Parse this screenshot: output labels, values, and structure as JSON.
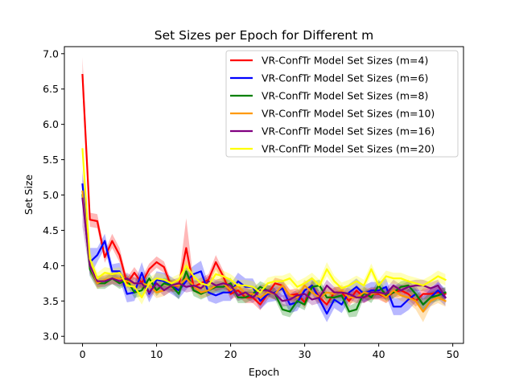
{
  "chart_data": {
    "type": "line",
    "title": "Set Sizes per Epoch for Different m",
    "xlabel": "Epoch",
    "ylabel": "Set Size",
    "xlim": [
      -2.45,
      51.45
    ],
    "ylim": [
      2.9,
      7.1
    ],
    "xticks": [
      0,
      10,
      20,
      30,
      40,
      50
    ],
    "yticks": [
      3.0,
      3.5,
      4.0,
      4.5,
      5.0,
      5.5,
      6.0,
      6.5,
      7.0
    ],
    "xtick_labels": [
      "0",
      "10",
      "20",
      "30",
      "40",
      "50"
    ],
    "ytick_labels": [
      "3.0",
      "3.5",
      "4.0",
      "4.5",
      "5.0",
      "5.5",
      "6.0",
      "6.5",
      "7.0"
    ],
    "grid": false,
    "legend_position": "top-right",
    "shaded_band": "mean ± spread, semi-transparent, same color as line",
    "x": [
      0,
      1,
      2,
      3,
      4,
      5,
      6,
      7,
      8,
      9,
      10,
      11,
      12,
      13,
      14,
      15,
      16,
      17,
      18,
      19,
      20,
      21,
      22,
      23,
      24,
      25,
      26,
      27,
      28,
      29,
      30,
      31,
      32,
      33,
      34,
      35,
      36,
      37,
      38,
      39,
      40,
      41,
      42,
      43,
      44,
      45,
      46,
      47,
      48,
      49
    ],
    "series": [
      {
        "name": "VR-ConfTr Model Set Sizes (m=4)",
        "color": "#ff0000",
        "values": [
          6.7,
          4.65,
          4.63,
          4.12,
          4.35,
          4.15,
          3.75,
          3.9,
          3.75,
          3.95,
          4.05,
          3.98,
          3.7,
          3.72,
          4.25,
          3.7,
          3.75,
          3.8,
          4.05,
          3.85,
          3.6,
          3.65,
          3.55,
          3.55,
          3.45,
          3.6,
          3.75,
          3.72,
          3.58,
          3.6,
          3.48,
          3.72,
          3.55,
          3.45,
          3.62,
          3.62,
          3.5,
          3.65,
          3.55,
          3.6,
          3.6,
          3.55,
          3.62,
          3.65,
          3.6,
          3.5,
          3.6,
          3.6,
          3.62,
          3.6
        ],
        "spread": [
          0.25,
          0.1,
          0.1,
          0.08,
          0.1,
          0.1,
          0.08,
          0.08,
          0.08,
          0.08,
          0.08,
          0.08,
          0.08,
          0.08,
          0.42,
          0.08,
          0.08,
          0.08,
          0.1,
          0.08,
          0.08,
          0.08,
          0.08,
          0.08,
          0.08,
          0.08,
          0.08,
          0.08,
          0.08,
          0.08,
          0.08,
          0.08,
          0.08,
          0.08,
          0.08,
          0.08,
          0.08,
          0.08,
          0.08,
          0.08,
          0.08,
          0.08,
          0.08,
          0.08,
          0.08,
          0.08,
          0.08,
          0.08,
          0.08,
          0.08
        ]
      },
      {
        "name": "VR-ConfTr Model Set Sizes (m=6)",
        "color": "#0000ff",
        "values": [
          5.15,
          4.05,
          4.15,
          4.35,
          3.92,
          3.92,
          3.6,
          3.62,
          3.9,
          3.6,
          3.8,
          3.78,
          3.72,
          3.65,
          3.78,
          3.88,
          3.92,
          3.62,
          3.58,
          3.62,
          3.62,
          3.78,
          3.7,
          3.7,
          3.5,
          3.6,
          3.62,
          3.68,
          3.45,
          3.48,
          3.65,
          3.72,
          3.52,
          3.32,
          3.52,
          3.45,
          3.62,
          3.7,
          3.6,
          3.65,
          3.65,
          3.7,
          3.42,
          3.42,
          3.52,
          3.6,
          3.45,
          3.55,
          3.65,
          3.55
        ],
        "spread": [
          0.15,
          0.2,
          0.1,
          0.1,
          0.1,
          0.12,
          0.12,
          0.12,
          0.15,
          0.12,
          0.12,
          0.12,
          0.12,
          0.12,
          0.12,
          0.12,
          0.15,
          0.12,
          0.12,
          0.12,
          0.12,
          0.12,
          0.12,
          0.12,
          0.12,
          0.12,
          0.12,
          0.12,
          0.12,
          0.12,
          0.12,
          0.12,
          0.12,
          0.12,
          0.12,
          0.12,
          0.12,
          0.12,
          0.12,
          0.12,
          0.12,
          0.12,
          0.12,
          0.12,
          0.15,
          0.12,
          0.12,
          0.12,
          0.12,
          0.12
        ]
      },
      {
        "name": "VR-ConfTr Model Set Sizes (m=8)",
        "color": "#008000",
        "values": [
          5.0,
          3.95,
          3.75,
          3.75,
          3.82,
          3.75,
          3.8,
          3.62,
          3.65,
          3.82,
          3.65,
          3.75,
          3.72,
          3.6,
          3.92,
          3.65,
          3.6,
          3.65,
          3.7,
          3.7,
          3.75,
          3.55,
          3.55,
          3.6,
          3.7,
          3.65,
          3.6,
          3.38,
          3.35,
          3.5,
          3.45,
          3.7,
          3.72,
          3.55,
          3.55,
          3.58,
          3.35,
          3.38,
          3.62,
          3.55,
          3.72,
          3.58,
          3.62,
          3.7,
          3.72,
          3.6,
          3.45,
          3.55,
          3.58,
          3.62
        ],
        "spread": [
          0.1,
          0.1,
          0.08,
          0.08,
          0.08,
          0.08,
          0.08,
          0.08,
          0.08,
          0.08,
          0.08,
          0.08,
          0.08,
          0.08,
          0.08,
          0.08,
          0.08,
          0.08,
          0.08,
          0.08,
          0.08,
          0.08,
          0.08,
          0.08,
          0.08,
          0.08,
          0.08,
          0.08,
          0.08,
          0.08,
          0.08,
          0.08,
          0.08,
          0.08,
          0.08,
          0.08,
          0.08,
          0.1,
          0.08,
          0.08,
          0.08,
          0.08,
          0.08,
          0.08,
          0.08,
          0.08,
          0.08,
          0.08,
          0.08,
          0.08
        ]
      },
      {
        "name": "VR-ConfTr Model Set Sizes (m=10)",
        "color": "#ff9900",
        "values": [
          5.05,
          4.0,
          3.75,
          3.8,
          3.82,
          3.82,
          3.78,
          3.75,
          3.75,
          3.72,
          3.62,
          3.65,
          3.72,
          3.72,
          3.82,
          3.72,
          3.62,
          3.65,
          3.72,
          3.75,
          3.65,
          3.72,
          3.6,
          3.6,
          3.55,
          3.62,
          3.6,
          3.72,
          3.58,
          3.55,
          3.72,
          3.62,
          3.55,
          3.62,
          3.6,
          3.65,
          3.55,
          3.55,
          3.62,
          3.6,
          3.62,
          3.55,
          3.65,
          3.58,
          3.55,
          3.5,
          3.35,
          3.5,
          3.55,
          3.5
        ],
        "spread": [
          0.1,
          0.1,
          0.08,
          0.08,
          0.08,
          0.08,
          0.08,
          0.08,
          0.08,
          0.08,
          0.08,
          0.08,
          0.08,
          0.08,
          0.08,
          0.08,
          0.08,
          0.08,
          0.08,
          0.08,
          0.08,
          0.08,
          0.08,
          0.08,
          0.08,
          0.08,
          0.08,
          0.08,
          0.08,
          0.08,
          0.08,
          0.08,
          0.08,
          0.08,
          0.08,
          0.08,
          0.08,
          0.08,
          0.08,
          0.08,
          0.08,
          0.08,
          0.08,
          0.08,
          0.08,
          0.12,
          0.15,
          0.08,
          0.08,
          0.08
        ]
      },
      {
        "name": "VR-ConfTr Model Set Sizes (m=16)",
        "color": "#800080",
        "values": [
          4.95,
          4.0,
          3.78,
          3.78,
          3.82,
          3.78,
          3.82,
          3.75,
          3.75,
          3.62,
          3.75,
          3.65,
          3.72,
          3.75,
          3.7,
          3.72,
          3.68,
          3.78,
          3.72,
          3.75,
          3.72,
          3.58,
          3.62,
          3.55,
          3.65,
          3.65,
          3.6,
          3.5,
          3.52,
          3.58,
          3.6,
          3.52,
          3.55,
          3.72,
          3.62,
          3.62,
          3.6,
          3.55,
          3.55,
          3.62,
          3.62,
          3.6,
          3.72,
          3.65,
          3.7,
          3.72,
          3.72,
          3.68,
          3.72,
          3.55
        ],
        "spread": [
          0.4,
          0.12,
          0.08,
          0.08,
          0.08,
          0.08,
          0.08,
          0.08,
          0.08,
          0.08,
          0.08,
          0.08,
          0.08,
          0.08,
          0.08,
          0.08,
          0.08,
          0.08,
          0.08,
          0.08,
          0.08,
          0.08,
          0.08,
          0.08,
          0.08,
          0.08,
          0.08,
          0.08,
          0.08,
          0.08,
          0.08,
          0.08,
          0.08,
          0.08,
          0.08,
          0.08,
          0.08,
          0.08,
          0.08,
          0.08,
          0.08,
          0.08,
          0.08,
          0.08,
          0.08,
          0.08,
          0.08,
          0.08,
          0.08,
          0.08
        ]
      },
      {
        "name": "VR-ConfTr Model Set Sizes (m=20)",
        "color": "#ffff00",
        "values": [
          5.65,
          4.1,
          3.82,
          3.9,
          3.88,
          3.9,
          3.72,
          3.7,
          3.55,
          3.75,
          3.82,
          3.8,
          3.75,
          3.8,
          4.0,
          3.85,
          3.75,
          3.72,
          3.88,
          3.85,
          3.8,
          3.72,
          3.72,
          3.7,
          3.62,
          3.75,
          3.78,
          3.78,
          3.82,
          3.7,
          3.75,
          3.82,
          3.72,
          3.95,
          3.78,
          3.68,
          3.72,
          3.78,
          3.72,
          3.95,
          3.72,
          3.85,
          3.82,
          3.82,
          3.78,
          3.75,
          3.72,
          3.78,
          3.85,
          3.8
        ],
        "spread": [
          0.1,
          0.1,
          0.08,
          0.08,
          0.08,
          0.08,
          0.08,
          0.08,
          0.1,
          0.08,
          0.08,
          0.08,
          0.08,
          0.08,
          0.08,
          0.08,
          0.08,
          0.08,
          0.08,
          0.08,
          0.08,
          0.08,
          0.08,
          0.08,
          0.08,
          0.08,
          0.08,
          0.08,
          0.08,
          0.08,
          0.08,
          0.08,
          0.08,
          0.1,
          0.08,
          0.08,
          0.08,
          0.08,
          0.08,
          0.08,
          0.08,
          0.08,
          0.08,
          0.08,
          0.08,
          0.08,
          0.08,
          0.08,
          0.08,
          0.08
        ]
      }
    ]
  }
}
